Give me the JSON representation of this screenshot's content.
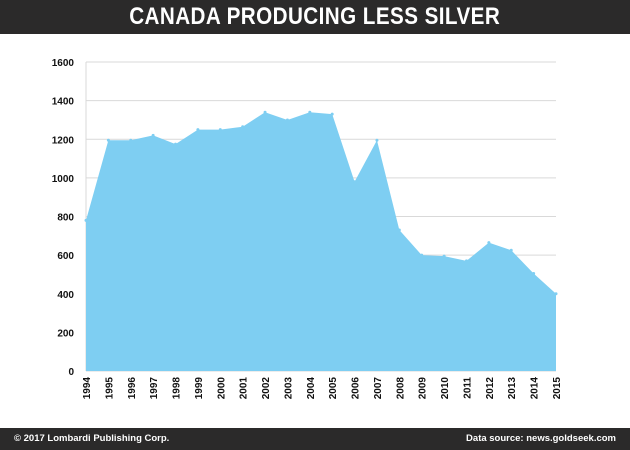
{
  "header": {
    "title": "CANADA PRODUCING LESS SILVER"
  },
  "footer": {
    "copyright": "© 2017 Lombardi Publishing Corp.",
    "source": "Data source: news.goldseek.com"
  },
  "colors": {
    "area_fill": "#7ecef2",
    "bar_background": "#2b2a2a",
    "grid": "#d9d9d9"
  },
  "chart_data": {
    "type": "area",
    "title": "CANADA PRODUCING LESS SILVER",
    "xlabel": "",
    "ylabel": "",
    "x": [
      "1994",
      "1995",
      "1996",
      "1997",
      "1998",
      "1999",
      "2000",
      "2001",
      "2002",
      "2003",
      "2004",
      "2005",
      "2006",
      "2007",
      "2008",
      "2009",
      "2010",
      "2011",
      "2012",
      "2013",
      "2014",
      "2015"
    ],
    "series": [
      {
        "values": [
          780,
          1195,
          1195,
          1220,
          1175,
          1250,
          1250,
          1265,
          1340,
          1300,
          1340,
          1330,
          980,
          1195,
          730,
          600,
          595,
          570,
          665,
          625,
          505,
          400
        ]
      }
    ],
    "ylim": [
      0,
      1600
    ],
    "yticks": [
      0,
      200,
      400,
      600,
      800,
      1000,
      1200,
      1400,
      1600
    ],
    "grid": true,
    "legend": "none"
  }
}
